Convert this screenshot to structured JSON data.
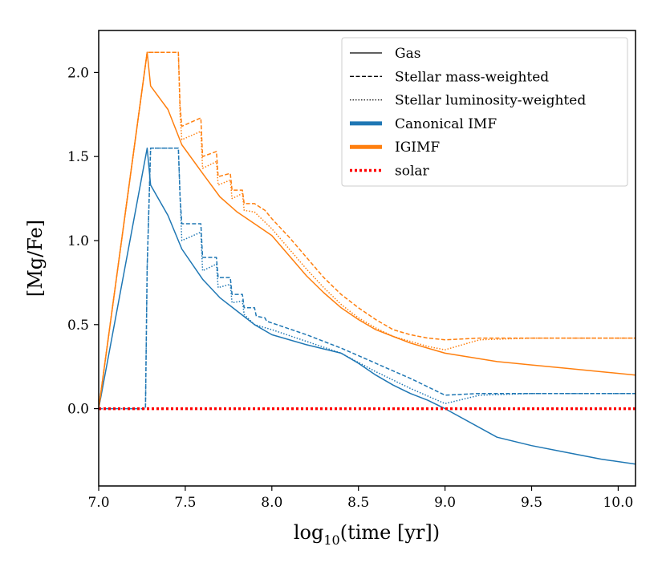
{
  "chart_data": {
    "type": "line",
    "title": "",
    "xlabel": "log10(time [yr])",
    "ylabel": "[Mg/Fe]",
    "xlim": [
      7.0,
      10.1
    ],
    "ylim": [
      -0.46,
      2.25
    ],
    "xticks": [
      "7.0",
      "7.5",
      "8.0",
      "8.5",
      "9.0",
      "9.5",
      "10.0"
    ],
    "yticks": [
      "0.0",
      "0.5",
      "1.0",
      "1.5",
      "2.0"
    ],
    "grid": false,
    "legend_position": "top-right",
    "legend": [
      {
        "label": "Gas",
        "kind": "style",
        "dash": "solid"
      },
      {
        "label": "Stellar mass-weighted",
        "kind": "style",
        "dash": "dashed"
      },
      {
        "label": "Stellar luminosity-weighted",
        "kind": "style",
        "dash": "dotted"
      },
      {
        "label": "Canonical IMF",
        "kind": "color",
        "color": "#1f77b4"
      },
      {
        "label": "IGIMF",
        "kind": "color",
        "color": "#ff7f0e"
      },
      {
        "label": "solar",
        "kind": "reference",
        "color": "#ff0000"
      }
    ],
    "series": [
      {
        "model": "Canonical IMF",
        "measure": "Gas",
        "color": "#1f77b4",
        "dash": "solid",
        "x": [
          7.0,
          7.28,
          7.3,
          7.4,
          7.48,
          7.6,
          7.7,
          7.8,
          7.9,
          8.0,
          8.2,
          8.4,
          8.5,
          8.6,
          8.7,
          8.8,
          8.9,
          9.0,
          9.3,
          9.5,
          9.7,
          9.9,
          10.1
        ],
        "y": [
          0.0,
          1.55,
          1.33,
          1.15,
          0.95,
          0.77,
          0.66,
          0.58,
          0.5,
          0.44,
          0.38,
          0.33,
          0.27,
          0.2,
          0.14,
          0.09,
          0.05,
          0.0,
          -0.17,
          -0.22,
          -0.26,
          -0.3,
          -0.33
        ]
      },
      {
        "model": "Canonical IMF",
        "measure": "Stellar mass-weighted",
        "color": "#1f77b4",
        "dash": "dashed",
        "x": [
          7.0,
          7.27,
          7.28,
          7.3,
          7.46,
          7.47,
          7.48,
          7.59,
          7.6,
          7.68,
          7.69,
          7.76,
          7.77,
          7.83,
          7.84,
          7.9,
          7.91,
          7.96,
          7.97,
          8.0,
          8.2,
          8.4,
          8.6,
          8.8,
          9.0,
          9.2,
          9.5,
          10.1
        ],
        "y": [
          0.0,
          0.0,
          0.84,
          1.55,
          1.55,
          1.26,
          1.1,
          1.1,
          0.9,
          0.9,
          0.78,
          0.78,
          0.68,
          0.68,
          0.6,
          0.6,
          0.55,
          0.54,
          0.52,
          0.51,
          0.44,
          0.36,
          0.27,
          0.18,
          0.08,
          0.09,
          0.09,
          0.09
        ]
      },
      {
        "model": "Canonical IMF",
        "measure": "Stellar luminosity-weighted",
        "color": "#1f77b4",
        "dash": "dotted",
        "x": [
          7.0,
          7.27,
          7.28,
          7.3,
          7.46,
          7.47,
          7.48,
          7.59,
          7.6,
          7.68,
          7.69,
          7.76,
          7.77,
          7.83,
          7.84,
          7.9,
          8.0,
          8.2,
          8.4,
          8.6,
          8.8,
          9.0,
          9.2,
          9.5,
          10.1
        ],
        "y": [
          0.0,
          0.0,
          0.84,
          1.55,
          1.55,
          1.26,
          1.0,
          1.05,
          0.82,
          0.86,
          0.72,
          0.74,
          0.63,
          0.64,
          0.56,
          0.5,
          0.47,
          0.4,
          0.33,
          0.22,
          0.12,
          0.03,
          0.08,
          0.09,
          0.09
        ]
      },
      {
        "model": "IGIMF",
        "measure": "Gas",
        "color": "#ff7f0e",
        "dash": "solid",
        "x": [
          7.0,
          7.28,
          7.3,
          7.4,
          7.48,
          7.6,
          7.7,
          7.8,
          7.9,
          8.0,
          8.1,
          8.2,
          8.3,
          8.4,
          8.5,
          8.6,
          8.7,
          8.8,
          8.9,
          9.0,
          9.3,
          9.5,
          9.7,
          9.9,
          10.1
        ],
        "y": [
          0.0,
          2.12,
          1.92,
          1.78,
          1.57,
          1.4,
          1.26,
          1.17,
          1.1,
          1.03,
          0.91,
          0.79,
          0.69,
          0.6,
          0.53,
          0.47,
          0.43,
          0.39,
          0.36,
          0.33,
          0.28,
          0.26,
          0.24,
          0.22,
          0.2
        ]
      },
      {
        "model": "IGIMF",
        "measure": "Stellar mass-weighted",
        "color": "#ff7f0e",
        "dash": "dashed",
        "x": [
          7.0,
          7.28,
          7.3,
          7.46,
          7.47,
          7.48,
          7.59,
          7.6,
          7.68,
          7.69,
          7.76,
          7.77,
          7.83,
          7.84,
          7.9,
          7.96,
          8.0,
          8.1,
          8.2,
          8.3,
          8.4,
          8.5,
          8.6,
          8.7,
          8.8,
          8.9,
          9.0,
          9.2,
          9.5,
          10.1
        ],
        "y": [
          0.0,
          2.12,
          2.12,
          2.12,
          1.8,
          1.68,
          1.73,
          1.5,
          1.53,
          1.38,
          1.4,
          1.3,
          1.3,
          1.22,
          1.22,
          1.18,
          1.13,
          1.02,
          0.9,
          0.78,
          0.68,
          0.6,
          0.53,
          0.47,
          0.44,
          0.42,
          0.41,
          0.42,
          0.42,
          0.42
        ]
      },
      {
        "model": "IGIMF",
        "measure": "Stellar luminosity-weighted",
        "color": "#ff7f0e",
        "dash": "dotted",
        "x": [
          7.0,
          7.28,
          7.3,
          7.46,
          7.47,
          7.48,
          7.59,
          7.6,
          7.68,
          7.69,
          7.76,
          7.77,
          7.83,
          7.84,
          7.9,
          8.0,
          8.1,
          8.2,
          8.3,
          8.4,
          8.5,
          8.6,
          8.7,
          8.8,
          8.9,
          9.0,
          9.2,
          9.5,
          10.1
        ],
        "y": [
          0.0,
          2.12,
          2.12,
          2.12,
          1.75,
          1.6,
          1.65,
          1.43,
          1.47,
          1.33,
          1.36,
          1.25,
          1.28,
          1.18,
          1.17,
          1.07,
          0.95,
          0.83,
          0.72,
          0.62,
          0.54,
          0.48,
          0.43,
          0.4,
          0.37,
          0.35,
          0.41,
          0.42,
          0.42
        ]
      },
      {
        "model": "solar",
        "measure": "reference",
        "color": "#ff0000",
        "dash": "dotted-thick",
        "x": [
          7.0,
          10.1
        ],
        "y": [
          0.0,
          0.0
        ]
      }
    ]
  }
}
